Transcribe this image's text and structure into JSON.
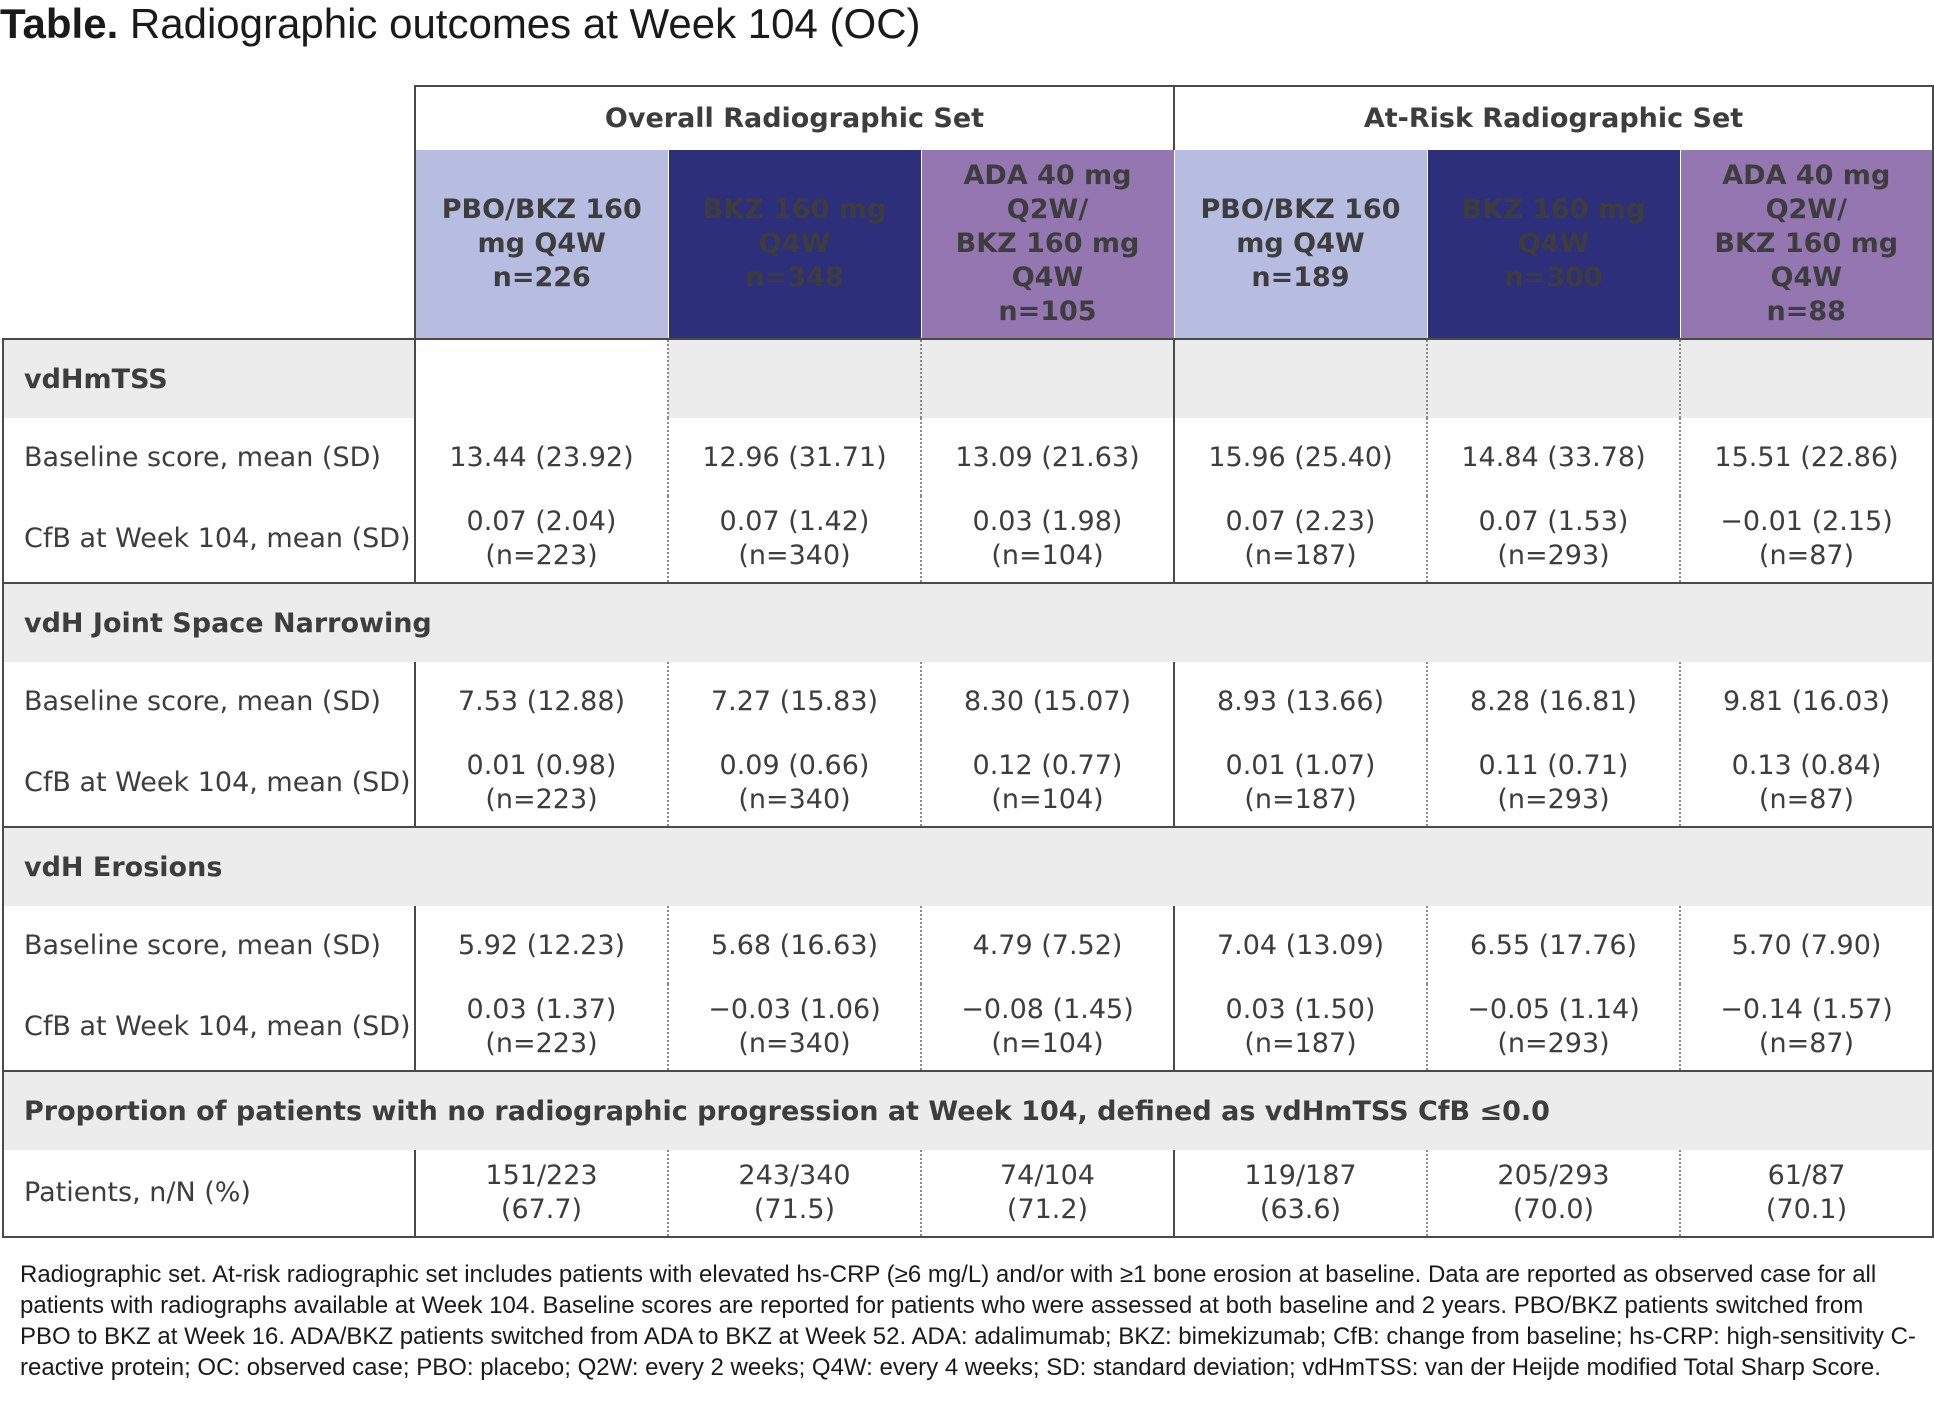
{
  "title": {
    "bold": "Table.",
    "rest": "Radiographic outcomes at Week 104 (OC)"
  },
  "groups": [
    "Overall Radiographic Set",
    "At-Risk Radiographic Set"
  ],
  "columns": [
    {
      "label": "PBO/BKZ 160\nmg Q4W\nn=226"
    },
    {
      "label": "BKZ 160 mg\nQ4W\nn=348"
    },
    {
      "label": "ADA 40 mg\nQ2W/\nBKZ 160 mg\nQ4W\nn=105"
    },
    {
      "label": "PBO/BKZ 160\nmg Q4W\nn=189"
    },
    {
      "label": "BKZ 160 mg\nQ4W\nn=300"
    },
    {
      "label": "ADA 40 mg\nQ2W/\nBKZ 160 mg\nQ4W\nn=88"
    }
  ],
  "sections": [
    {
      "heading": "vdHmTSS",
      "rows": [
        {
          "label": "Baseline score, mean (SD)",
          "values": [
            "13.44 (23.92)",
            "12.96 (31.71)",
            "13.09 (21.63)",
            "15.96 (25.40)",
            "14.84 (33.78)",
            "15.51 (22.86)"
          ]
        },
        {
          "label": "CfB at Week 104, mean (SD)",
          "values": [
            "0.07 (2.04)\n(n=223)",
            "0.07 (1.42)\n(n=340)",
            "0.03 (1.98)\n(n=104)",
            "0.07 (2.23)\n(n=187)",
            "0.07 (1.53)\n(n=293)",
            "−0.01 (2.15)\n(n=87)"
          ]
        }
      ]
    },
    {
      "heading": "vdH Joint Space Narrowing",
      "rows": [
        {
          "label": "Baseline score, mean (SD)",
          "values": [
            "7.53 (12.88)",
            "7.27 (15.83)",
            "8.30 (15.07)",
            "8.93 (13.66)",
            "8.28 (16.81)",
            "9.81 (16.03)"
          ]
        },
        {
          "label": "CfB at Week 104, mean (SD)",
          "values": [
            "0.01 (0.98)\n(n=223)",
            "0.09 (0.66)\n(n=340)",
            "0.12 (0.77)\n(n=104)",
            "0.01 (1.07)\n(n=187)",
            "0.11 (0.71)\n(n=293)",
            "0.13 (0.84)\n(n=87)"
          ]
        }
      ]
    },
    {
      "heading": "vdH Erosions",
      "rows": [
        {
          "label": "Baseline score, mean (SD)",
          "values": [
            "5.92 (12.23)",
            "5.68 (16.63)",
            "4.79 (7.52)",
            "7.04 (13.09)",
            "6.55 (17.76)",
            "5.70 (7.90)"
          ]
        },
        {
          "label": "CfB at Week 104, mean (SD)",
          "values": [
            "0.03 (1.37)\n(n=223)",
            "−0.03 (1.06)\n(n=340)",
            "−0.08 (1.45)\n(n=104)",
            "0.03 (1.50)\n(n=187)",
            "−0.05 (1.14)\n(n=293)",
            "−0.14 (1.57)\n(n=87)"
          ]
        }
      ]
    },
    {
      "heading": "Proportion of patients with no radiographic progression at Week 104, defined as  vdHmTSS CfB ≤0.0",
      "rows": [
        {
          "label": "Patients, n/N (%)",
          "values": [
            "151/223\n(67.7)",
            "243/340\n(71.5)",
            "74/104\n(71.2)",
            "119/187\n(63.6)",
            "205/293\n(70.0)",
            "61/87\n(70.1)"
          ]
        }
      ]
    }
  ],
  "footnote": "Radiographic set. At-risk radiographic set includes patients with elevated hs-CRP (≥6 mg/L) and/or with ≥1 bone erosion at baseline. Data are reported as observed case for all patients with radiographs available at Week 104. Baseline scores are reported for patients who were assessed at both baseline and 2 years. PBO/BKZ patients switched from PBO to BKZ at Week 16. ADA/BKZ patients switched from ADA to BKZ at Week 52. ADA: adalimumab; BKZ: bimekizumab; CfB: change from baseline; hs-CRP: high-sensitivity C-reactive protein; OC: observed case; PBO: placebo; Q2W: every 2 weeks; Q4W: every 4 weeks; SD: standard deviation; vdHmTSS: van der Heijde modified Total Sharp Score."
}
